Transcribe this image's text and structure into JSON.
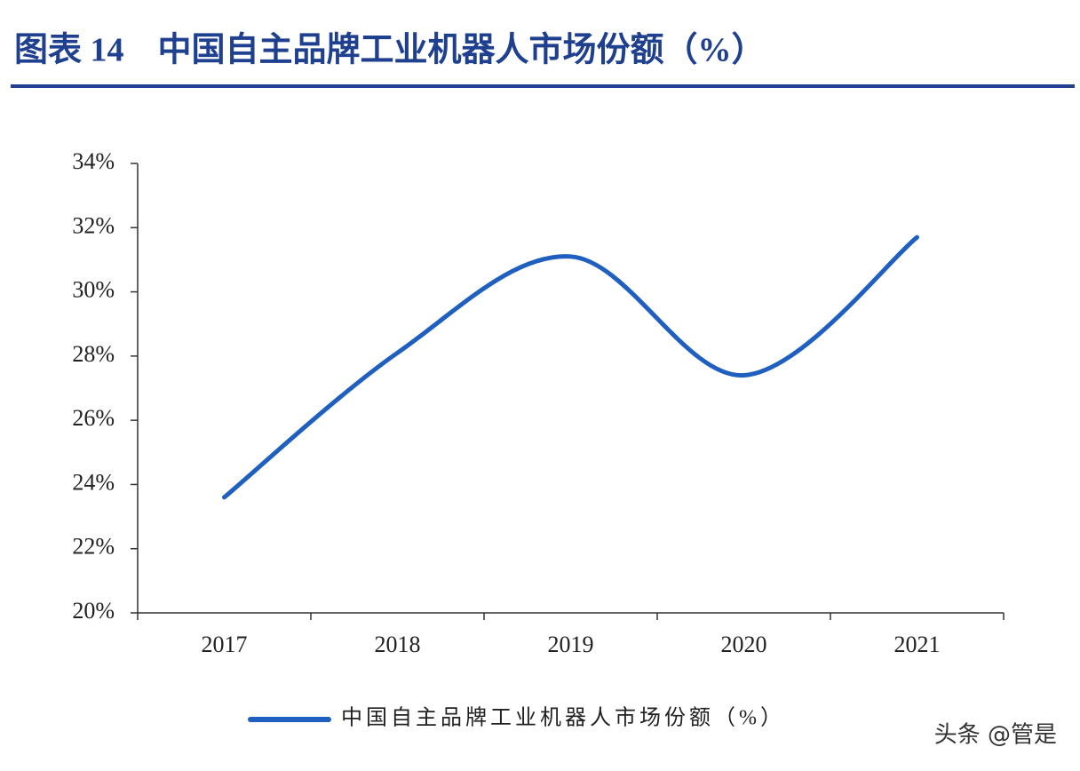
{
  "chart_data": {
    "type": "line",
    "title": "图表 14　中国自主品牌工业机器人市场份额（%）",
    "categories": [
      "2017",
      "2018",
      "2019",
      "2020",
      "2021"
    ],
    "series": [
      {
        "name": "中国自主品牌工业机器人市场份额（%）",
        "color": "#1f5fbf",
        "values": [
          23.6,
          28.1,
          31.1,
          27.4,
          31.7
        ]
      }
    ],
    "ylim": [
      20,
      34
    ],
    "yticks": [
      {
        "value": 20,
        "label": "20%"
      },
      {
        "value": 22,
        "label": "22%"
      },
      {
        "value": 24,
        "label": "24%"
      },
      {
        "value": 26,
        "label": "26%"
      },
      {
        "value": 28,
        "label": "28%"
      },
      {
        "value": 30,
        "label": "30%"
      },
      {
        "value": 32,
        "label": "32%"
      },
      {
        "value": 34,
        "label": "34%"
      }
    ],
    "smooth": true,
    "legend": "bottom"
  },
  "watermark": "头条 @管是"
}
